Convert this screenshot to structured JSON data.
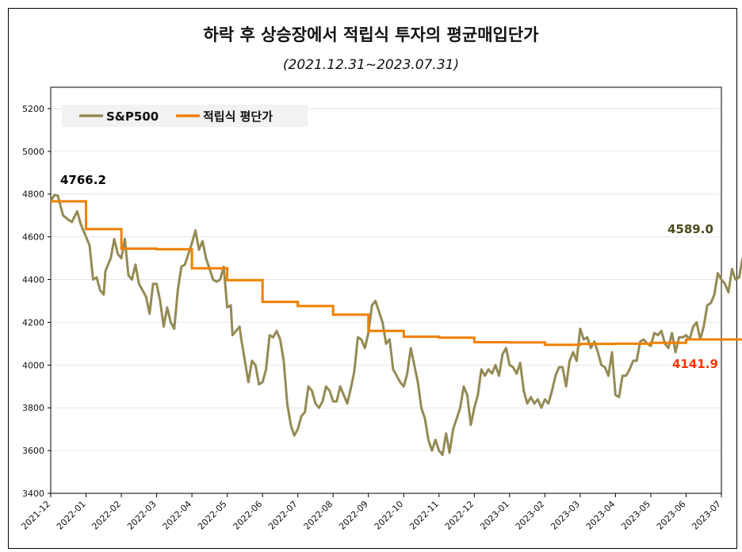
{
  "chart_data": {
    "type": "line",
    "title": "하락 후 상승장에서 적립식 투자의 평균매입단가",
    "subtitle": "(2021.12.31~2023.07.31)",
    "ylim": [
      3400,
      5300
    ],
    "yticks": [
      3400,
      3600,
      3800,
      4000,
      4200,
      4400,
      4600,
      4800,
      5000,
      5200
    ],
    "xticks": [
      "2021-12",
      "2022-01",
      "2022-02",
      "2022-03",
      "2022-04",
      "2022-05",
      "2022-06",
      "2022-07",
      "2022-08",
      "2022-09",
      "2022-10",
      "2022-11",
      "2022-12",
      "2023-01",
      "2023-02",
      "2023-03",
      "2023-04",
      "2023-05",
      "2023-06",
      "2023-07"
    ],
    "grid": "horizontal",
    "legend_position": "top-left",
    "series": [
      {
        "name": "S&P500",
        "color": "#948a54",
        "points": [
          [
            0,
            4766
          ],
          [
            0.1,
            4796
          ],
          [
            0.2,
            4793
          ],
          [
            0.35,
            4700
          ],
          [
            0.5,
            4680
          ],
          [
            0.6,
            4670
          ],
          [
            0.75,
            4720
          ],
          [
            0.85,
            4660
          ],
          [
            1.0,
            4600
          ],
          [
            1.1,
            4560
          ],
          [
            1.2,
            4400
          ],
          [
            1.3,
            4410
          ],
          [
            1.4,
            4350
          ],
          [
            1.5,
            4330
          ],
          [
            1.55,
            4440
          ],
          [
            1.7,
            4500
          ],
          [
            1.8,
            4590
          ],
          [
            1.9,
            4520
          ],
          [
            2.0,
            4500
          ],
          [
            2.1,
            4590
          ],
          [
            2.2,
            4420
          ],
          [
            2.3,
            4400
          ],
          [
            2.4,
            4470
          ],
          [
            2.5,
            4380
          ],
          [
            2.6,
            4350
          ],
          [
            2.7,
            4320
          ],
          [
            2.8,
            4240
          ],
          [
            2.9,
            4380
          ],
          [
            3.0,
            4380
          ],
          [
            3.1,
            4300
          ],
          [
            3.2,
            4180
          ],
          [
            3.3,
            4270
          ],
          [
            3.4,
            4200
          ],
          [
            3.5,
            4170
          ],
          [
            3.6,
            4350
          ],
          [
            3.7,
            4460
          ],
          [
            3.8,
            4470
          ],
          [
            3.9,
            4520
          ],
          [
            4.0,
            4570
          ],
          [
            4.1,
            4630
          ],
          [
            4.2,
            4540
          ],
          [
            4.3,
            4580
          ],
          [
            4.4,
            4500
          ],
          [
            4.5,
            4450
          ],
          [
            4.6,
            4400
          ],
          [
            4.7,
            4390
          ],
          [
            4.8,
            4400
          ],
          [
            4.9,
            4460
          ],
          [
            5.0,
            4270
          ],
          [
            5.1,
            4280
          ],
          [
            5.15,
            4140
          ],
          [
            5.25,
            4160
          ],
          [
            5.35,
            4180
          ],
          [
            5.4,
            4120
          ],
          [
            5.5,
            4020
          ],
          [
            5.6,
            3920
          ],
          [
            5.7,
            4020
          ],
          [
            5.8,
            4000
          ],
          [
            5.9,
            3910
          ],
          [
            6.0,
            3920
          ],
          [
            6.1,
            3980
          ],
          [
            6.2,
            4140
          ],
          [
            6.3,
            4130
          ],
          [
            6.4,
            4160
          ],
          [
            6.5,
            4120
          ],
          [
            6.6,
            4020
          ],
          [
            6.7,
            3820
          ],
          [
            6.8,
            3720
          ],
          [
            6.9,
            3670
          ],
          [
            7.0,
            3700
          ],
          [
            7.1,
            3760
          ],
          [
            7.2,
            3780
          ],
          [
            7.3,
            3900
          ],
          [
            7.4,
            3880
          ],
          [
            7.5,
            3820
          ],
          [
            7.6,
            3800
          ],
          [
            7.7,
            3830
          ],
          [
            7.8,
            3900
          ],
          [
            7.9,
            3880
          ],
          [
            8.0,
            3830
          ],
          [
            8.1,
            3830
          ],
          [
            8.2,
            3900
          ],
          [
            8.3,
            3860
          ],
          [
            8.4,
            3820
          ],
          [
            8.5,
            3890
          ],
          [
            8.6,
            3970
          ],
          [
            8.7,
            4130
          ],
          [
            8.8,
            4120
          ],
          [
            8.9,
            4080
          ],
          [
            9.0,
            4150
          ],
          [
            9.1,
            4280
          ],
          [
            9.2,
            4300
          ],
          [
            9.3,
            4250
          ],
          [
            9.4,
            4200
          ],
          [
            9.5,
            4100
          ],
          [
            9.6,
            4120
          ],
          [
            9.7,
            3980
          ],
          [
            9.8,
            3950
          ],
          [
            9.9,
            3920
          ],
          [
            10.0,
            3900
          ],
          [
            10.1,
            3960
          ],
          [
            10.2,
            4080
          ],
          [
            10.3,
            4000
          ],
          [
            10.4,
            3920
          ],
          [
            10.5,
            3800
          ],
          [
            10.6,
            3750
          ],
          [
            10.7,
            3650
          ],
          [
            10.8,
            3600
          ],
          [
            10.9,
            3650
          ],
          [
            11.0,
            3600
          ],
          [
            11.1,
            3580
          ],
          [
            11.2,
            3680
          ],
          [
            11.3,
            3590
          ],
          [
            11.4,
            3700
          ],
          [
            11.5,
            3750
          ],
          [
            11.6,
            3800
          ],
          [
            11.7,
            3900
          ],
          [
            11.8,
            3860
          ],
          [
            11.9,
            3720
          ],
          [
            12.0,
            3800
          ],
          [
            12.1,
            3860
          ],
          [
            12.2,
            3980
          ],
          [
            12.3,
            3950
          ],
          [
            12.4,
            3980
          ],
          [
            12.5,
            3960
          ],
          [
            12.6,
            4000
          ],
          [
            12.7,
            3950
          ],
          [
            12.8,
            4050
          ],
          [
            12.9,
            4080
          ],
          [
            13.0,
            4000
          ],
          [
            13.1,
            3990
          ],
          [
            13.2,
            3960
          ],
          [
            13.3,
            4010
          ],
          [
            13.4,
            3880
          ],
          [
            13.5,
            3820
          ],
          [
            13.6,
            3850
          ],
          [
            13.7,
            3820
          ],
          [
            13.8,
            3840
          ],
          [
            13.9,
            3800
          ],
          [
            14.0,
            3840
          ],
          [
            14.1,
            3820
          ],
          [
            14.2,
            3880
          ],
          [
            14.3,
            3950
          ],
          [
            14.4,
            3990
          ],
          [
            14.5,
            3990
          ],
          [
            14.6,
            3900
          ],
          [
            14.7,
            4020
          ],
          [
            14.8,
            4060
          ],
          [
            14.9,
            4020
          ],
          [
            15.0,
            4170
          ],
          [
            15.1,
            4120
          ],
          [
            15.2,
            4130
          ],
          [
            15.3,
            4080
          ],
          [
            15.4,
            4110
          ],
          [
            15.5,
            4060
          ],
          [
            15.6,
            4000
          ],
          [
            15.7,
            3990
          ],
          [
            15.8,
            3950
          ],
          [
            15.9,
            4060
          ],
          [
            16.0,
            3860
          ],
          [
            16.1,
            3850
          ],
          [
            16.2,
            3950
          ],
          [
            16.3,
            3950
          ],
          [
            16.4,
            3980
          ],
          [
            16.5,
            4020
          ],
          [
            16.6,
            4020
          ],
          [
            16.7,
            4110
          ],
          [
            16.8,
            4120
          ],
          [
            16.9,
            4100
          ],
          [
            17.0,
            4090
          ],
          [
            17.1,
            4150
          ],
          [
            17.2,
            4140
          ],
          [
            17.3,
            4160
          ],
          [
            17.4,
            4100
          ],
          [
            17.5,
            4080
          ],
          [
            17.6,
            4150
          ],
          [
            17.7,
            4060
          ],
          [
            17.8,
            4130
          ],
          [
            17.9,
            4130
          ],
          [
            18.0,
            4140
          ],
          [
            18.1,
            4120
          ],
          [
            18.2,
            4180
          ],
          [
            18.3,
            4200
          ],
          [
            18.4,
            4120
          ],
          [
            18.5,
            4180
          ],
          [
            18.6,
            4280
          ],
          [
            18.7,
            4290
          ],
          [
            18.8,
            4330
          ],
          [
            18.9,
            4430
          ],
          [
            19.0,
            4400
          ],
          [
            19.1,
            4380
          ],
          [
            19.2,
            4340
          ],
          [
            19.3,
            4450
          ],
          [
            19.4,
            4400
          ],
          [
            19.5,
            4410
          ],
          [
            19.6,
            4500
          ],
          [
            19.7,
            4510
          ],
          [
            19.8,
            4560
          ],
          [
            19.9,
            4560
          ],
          [
            19.95,
            4589
          ]
        ]
      },
      {
        "name": "적립식 평단가",
        "color": "#f08000",
        "steps": [
          [
            0,
            4766
          ],
          [
            1,
            4636
          ],
          [
            2,
            4545
          ],
          [
            3,
            4542
          ],
          [
            4,
            4453
          ],
          [
            5,
            4397
          ],
          [
            6,
            4296
          ],
          [
            7,
            4276
          ],
          [
            8,
            4236
          ],
          [
            9,
            4160
          ],
          [
            10,
            4133
          ],
          [
            11,
            4128
          ],
          [
            12,
            4107
          ],
          [
            13,
            4106
          ],
          [
            14,
            4095
          ],
          [
            15,
            4099
          ],
          [
            16,
            4100
          ],
          [
            17,
            4104
          ],
          [
            18,
            4120
          ],
          [
            19.95,
            4141.9
          ]
        ]
      }
    ],
    "annotations": [
      {
        "label": "4766.2",
        "series": "S&P500",
        "color": "#000000"
      },
      {
        "label": "4589.0",
        "series": "S&P500",
        "color": "#4a4a1a"
      },
      {
        "label": "4141.9",
        "series": "적립식 평단가",
        "color": "#ff3300"
      }
    ]
  }
}
